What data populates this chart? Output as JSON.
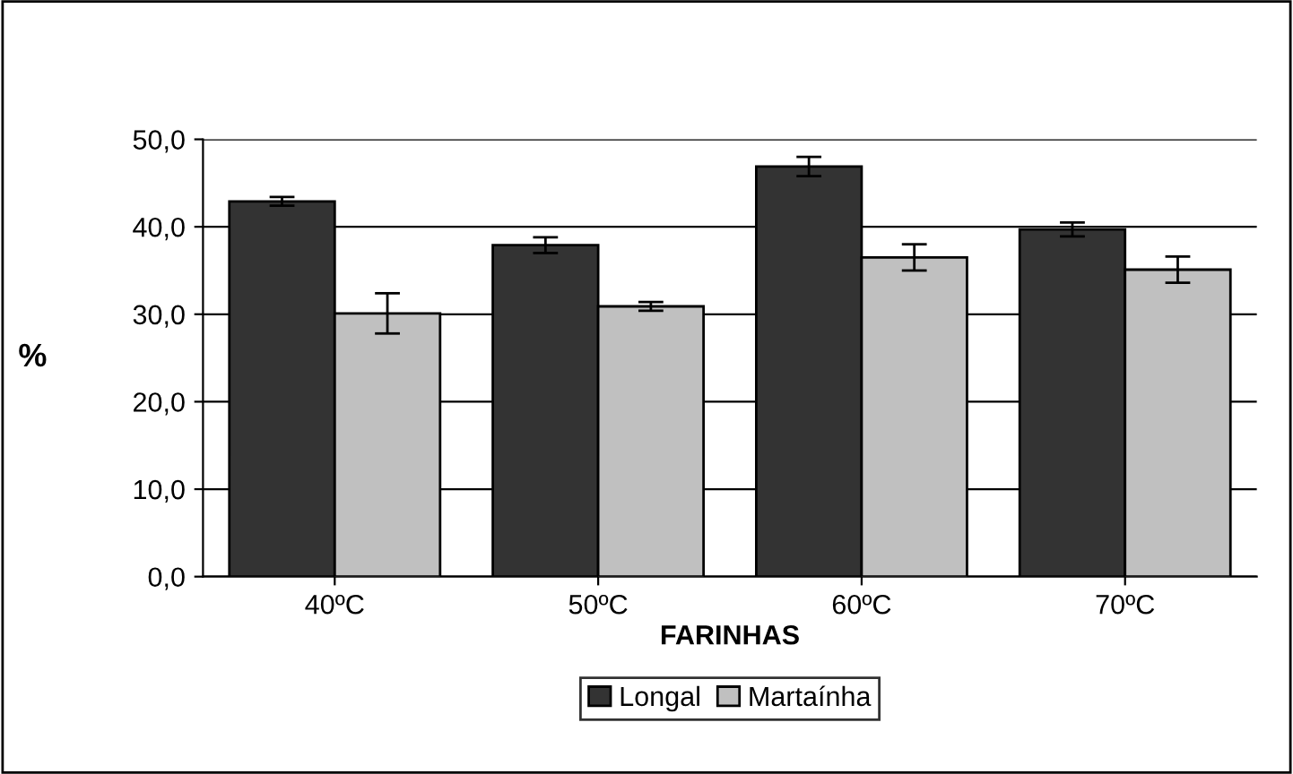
{
  "chart_data": {
    "type": "bar",
    "xlabel": "FARINHAS",
    "ylabel": "%",
    "categories": [
      "40ºC",
      "50ºC",
      "60ºC",
      "70ºC"
    ],
    "series": [
      {
        "name": "Longal",
        "color": "#333333",
        "values": [
          42.9,
          37.9,
          46.9,
          39.7
        ],
        "errors": [
          0.5,
          0.9,
          1.1,
          0.8
        ]
      },
      {
        "name": "Martaínha",
        "color": "#c0c0c0",
        "values": [
          30.1,
          30.9,
          36.5,
          35.1
        ],
        "errors": [
          2.3,
          0.5,
          1.5,
          1.5
        ]
      }
    ],
    "ylim": [
      0,
      50
    ],
    "yticks": [
      {
        "value": 0,
        "label": "0,0"
      },
      {
        "value": 10,
        "label": "10,0"
      },
      {
        "value": 20,
        "label": "20,0"
      },
      {
        "value": 30,
        "label": "30,0"
      },
      {
        "value": 40,
        "label": "40,0"
      },
      {
        "value": 50,
        "label": "50,0"
      }
    ],
    "grid": "y",
    "legend": "bottom"
  }
}
